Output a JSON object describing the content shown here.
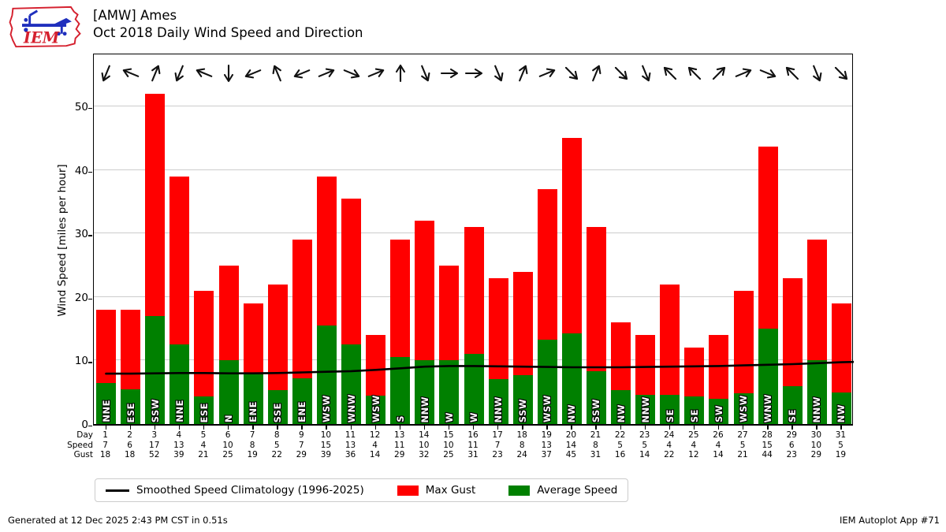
{
  "header": {
    "logo_text": "IEM"
  },
  "chart_data": {
    "type": "bar",
    "station": "[AMW] Ames",
    "title": "Oct 2018 Daily Wind Speed and Direction",
    "ylabel": "Wind Speed [miles per hour]",
    "ylim": [
      0,
      58.5
    ],
    "yticks": [
      0,
      10,
      20,
      30,
      40,
      50
    ],
    "grid": true,
    "legend_position": "bottom",
    "x_row_labels": {
      "day": "Day",
      "speed": "Speed",
      "gust": "Gust"
    },
    "days": [
      1,
      2,
      3,
      4,
      5,
      6,
      7,
      8,
      9,
      10,
      11,
      12,
      13,
      14,
      15,
      16,
      17,
      18,
      19,
      20,
      21,
      22,
      23,
      24,
      25,
      26,
      27,
      28,
      29,
      30,
      31
    ],
    "wind_directions": [
      "NNE",
      "ESE",
      "SSW",
      "NNE",
      "ESE",
      "N",
      "ENE",
      "SSE",
      "ENE",
      "WSW",
      "WNW",
      "WSW",
      "S",
      "NNW",
      "W",
      "W",
      "NNW",
      "SSW",
      "WSW",
      "NW",
      "SSW",
      "NW",
      "NNW",
      "SE",
      "SE",
      "SW",
      "WSW",
      "WNW",
      "SE",
      "NNW",
      "NW"
    ],
    "series": [
      {
        "name": "Smoothed Speed Climatology (1996-2025)",
        "type": "line",
        "color": "#000000",
        "values": [
          8.3,
          8.3,
          8.35,
          8.4,
          8.4,
          8.35,
          8.35,
          8.4,
          8.5,
          8.6,
          8.7,
          8.9,
          9.15,
          9.4,
          9.5,
          9.5,
          9.45,
          9.4,
          9.35,
          9.3,
          9.3,
          9.3,
          9.35,
          9.4,
          9.45,
          9.5,
          9.6,
          9.7,
          9.8,
          9.95,
          10.1
        ],
        "extension_values": [
          10.2
        ]
      },
      {
        "name": "Max Gust",
        "type": "bar",
        "color": "#ff0000",
        "values": [
          18,
          18,
          52,
          39,
          21,
          25,
          19,
          22,
          29,
          39,
          36,
          14,
          29,
          32,
          25,
          31,
          23,
          24,
          37,
          45,
          31,
          16,
          14,
          22,
          12,
          14,
          21,
          44,
          23,
          29,
          19
        ],
        "bar_values": [
          18,
          18,
          52,
          39,
          21,
          25,
          19,
          22,
          29,
          39,
          35.5,
          14,
          29,
          32,
          25,
          31,
          23,
          24,
          37,
          45,
          31,
          16,
          14,
          22,
          12,
          14,
          21,
          43.7,
          23,
          29,
          19
        ]
      },
      {
        "name": "Average Speed",
        "type": "bar",
        "color": "#008000",
        "values": [
          7,
          6,
          17,
          13,
          4,
          10,
          8,
          5,
          7,
          15,
          13,
          4,
          11,
          10,
          10,
          11,
          7,
          8,
          13,
          14,
          8,
          5,
          5,
          4,
          4,
          4,
          5,
          15,
          6,
          10,
          5
        ],
        "bar_values": [
          6.5,
          5.5,
          17,
          12.5,
          4.3,
          10,
          7.8,
          5.3,
          7.2,
          15.5,
          12.5,
          4.5,
          10.5,
          10.1,
          10,
          11,
          7.1,
          7.7,
          13.3,
          14.3,
          8.3,
          5.3,
          4.6,
          4.6,
          4.3,
          4,
          4.8,
          15,
          6,
          10,
          5
        ]
      }
    ]
  },
  "colors": {
    "max_gust": "#ff0000",
    "avg_speed": "#008000",
    "climatology": "#000000",
    "grid": "#cccccc",
    "logo_red": "#d5202e",
    "logo_blue": "#1f2fbd"
  },
  "footer": {
    "generated": "Generated at 12 Dec 2025 2:43 PM CST in 0.51s",
    "app": "IEM Autoplot App #71"
  }
}
